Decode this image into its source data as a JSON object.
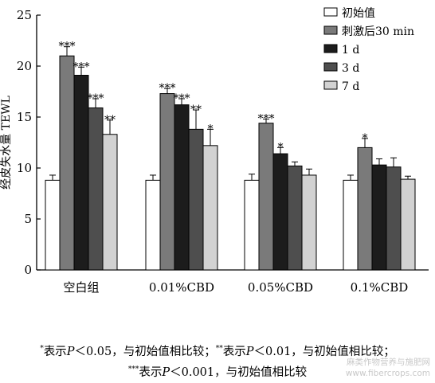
{
  "chart_data": {
    "type": "bar",
    "ylabel": "经皮失水量 TEWL",
    "ylim": [
      0,
      25
    ],
    "yticks": [
      0,
      5,
      10,
      15,
      20,
      25
    ],
    "categories": [
      "空白组",
      "0.01%CBD",
      "0.05%CBD",
      "0.1%CBD"
    ],
    "legend_position": "top-right",
    "series": [
      {
        "name": "初始值",
        "color": "#ffffff",
        "values": [
          8.8,
          8.8,
          8.8,
          8.8
        ],
        "errors": [
          0.5,
          0.5,
          0.6,
          0.5
        ],
        "marks": [
          "",
          "",
          "",
          ""
        ]
      },
      {
        "name": "刺激后30 min",
        "color": "#7a7a7a",
        "values": [
          21.0,
          17.3,
          14.4,
          12.0
        ],
        "errors": [
          0.9,
          0.5,
          0.4,
          0.9
        ],
        "marks": [
          "***",
          "***",
          "***",
          "*"
        ]
      },
      {
        "name": "1 d",
        "color": "#1c1c1c",
        "values": [
          19.1,
          16.2,
          11.4,
          10.3
        ],
        "errors": [
          0.8,
          0.6,
          0.6,
          0.6
        ],
        "marks": [
          "***",
          "***",
          "*",
          ""
        ]
      },
      {
        "name": "3 d",
        "color": "#4e4e4e",
        "values": [
          15.9,
          13.8,
          10.2,
          10.1
        ],
        "errors": [
          0.9,
          1.9,
          0.4,
          0.9
        ],
        "marks": [
          "***",
          "**",
          "",
          ""
        ]
      },
      {
        "name": "7 d",
        "color": "#d2d2d2",
        "values": [
          13.3,
          12.2,
          9.3,
          8.9
        ],
        "errors": [
          1.4,
          1.6,
          0.6,
          0.3
        ],
        "marks": [
          "**",
          "*",
          "",
          ""
        ]
      }
    ]
  },
  "footnote": {
    "line1": {
      "m1": "*",
      "t1": "表示",
      "p1": "P",
      "c1": "＜0.05，与初始值相比较；",
      "m2": "**",
      "t2": "表示",
      "p2": "P",
      "c2": "＜0.01，与初始值相比较；"
    },
    "line2": {
      "m": "***",
      "t": "表示",
      "p": "P",
      "c": "＜0.001，与初始值相比较"
    }
  },
  "watermark": {
    "line1": "麻类作物营养与施肥网",
    "line2": "www.fibercrops.com"
  }
}
